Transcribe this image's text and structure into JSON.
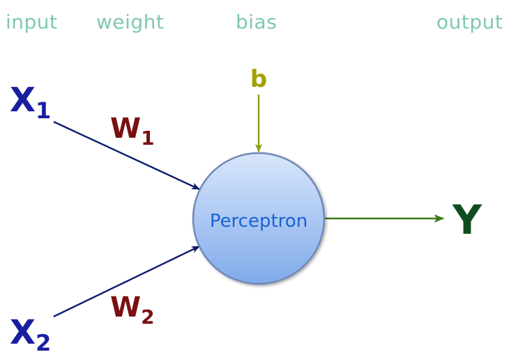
{
  "header": {
    "input_label": "input",
    "weight_label": "weight",
    "bias_label": "bias",
    "output_label": "output"
  },
  "nodes": {
    "x1": {
      "var": "X",
      "sub": "1"
    },
    "x2": {
      "var": "X",
      "sub": "2"
    },
    "w1": {
      "var": "W",
      "sub": "1"
    },
    "w2": {
      "var": "W",
      "sub": "2"
    },
    "bias": "b",
    "neuron": "Perceptron",
    "output": "Y"
  },
  "colors": {
    "header_text": "#7fc7b3",
    "input_blue": "#1a1fa0",
    "weight_red": "#7a1010",
    "bias_olive": "#a2a000",
    "output_green": "#0f4d1f",
    "neuron_text": "#1a62d4",
    "neuron_fill_top": "#d8e6fb",
    "neuron_fill_bottom": "#80aaea",
    "neuron_stroke": "#6f89b6",
    "arrow_navy": "#0b1b6e",
    "arrow_olive": "#8a9c14",
    "arrow_green": "#3f7a18"
  }
}
